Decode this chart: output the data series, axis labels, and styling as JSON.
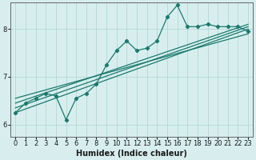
{
  "title": "",
  "xlabel": "Humidex (Indice chaleur)",
  "ylabel": "",
  "background_color": "#d8eeee",
  "grid_color": "#b0d8d8",
  "line_color": "#1a7a6e",
  "xlim": [
    -0.5,
    23.5
  ],
  "ylim": [
    5.75,
    8.55
  ],
  "xticks": [
    0,
    1,
    2,
    3,
    4,
    5,
    6,
    7,
    8,
    9,
    10,
    11,
    12,
    13,
    14,
    15,
    16,
    17,
    18,
    19,
    20,
    21,
    22,
    23
  ],
  "yticks": [
    6,
    7,
    8
  ],
  "main_data": [
    [
      0,
      6.25
    ],
    [
      1,
      6.45
    ],
    [
      2,
      6.55
    ],
    [
      3,
      6.65
    ],
    [
      4,
      6.6
    ],
    [
      5,
      6.1
    ],
    [
      6,
      6.55
    ],
    [
      7,
      6.65
    ],
    [
      8,
      6.85
    ],
    [
      9,
      7.25
    ],
    [
      10,
      7.55
    ],
    [
      11,
      7.75
    ],
    [
      12,
      7.55
    ],
    [
      13,
      7.6
    ],
    [
      14,
      7.75
    ],
    [
      15,
      8.25
    ],
    [
      16,
      8.5
    ],
    [
      17,
      8.05
    ],
    [
      18,
      8.05
    ],
    [
      19,
      8.1
    ],
    [
      20,
      8.05
    ],
    [
      21,
      8.05
    ],
    [
      22,
      8.05
    ],
    [
      23,
      7.95
    ]
  ],
  "line1": [
    [
      0,
      6.25
    ],
    [
      23,
      8.0
    ]
  ],
  "line2": [
    [
      0,
      6.35
    ],
    [
      23,
      8.05
    ]
  ],
  "line3": [
    [
      0,
      6.45
    ],
    [
      23,
      8.1
    ]
  ],
  "line4": [
    [
      0,
      6.55
    ],
    [
      23,
      7.9
    ]
  ]
}
